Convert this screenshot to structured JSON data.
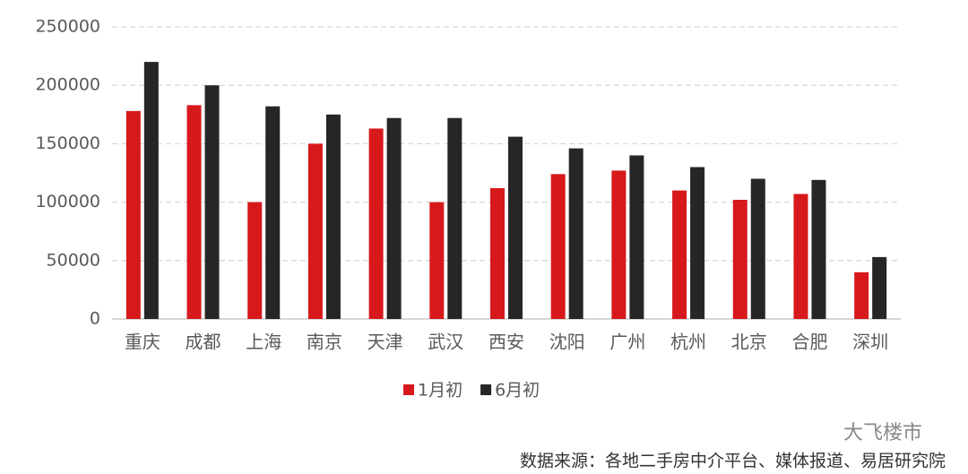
{
  "chart_data": {
    "type": "bar",
    "categories": [
      "重庆",
      "成都",
      "上海",
      "南京",
      "天津",
      "武汉",
      "西安",
      "沈阳",
      "广州",
      "杭州",
      "北京",
      "合肥",
      "深圳"
    ],
    "series": [
      {
        "name": "1月初",
        "color": "#d7191c",
        "values": [
          178000,
          183000,
          100000,
          150000,
          163000,
          100000,
          112000,
          124000,
          127000,
          110000,
          102000,
          107000,
          40000
        ]
      },
      {
        "name": "6月初",
        "color": "#262626",
        "values": [
          220000,
          200000,
          182000,
          175000,
          172000,
          172000,
          156000,
          146000,
          140000,
          130000,
          120000,
          119000,
          53000
        ]
      }
    ],
    "ylim": [
      0,
      250000
    ],
    "yticks": [
      0,
      50000,
      100000,
      150000,
      200000,
      250000
    ],
    "grid": true,
    "legend": "bottom",
    "source": "数据来源：各地二手房中介平台、媒体报道、易居研究院",
    "watermark": "大飞楼市"
  }
}
